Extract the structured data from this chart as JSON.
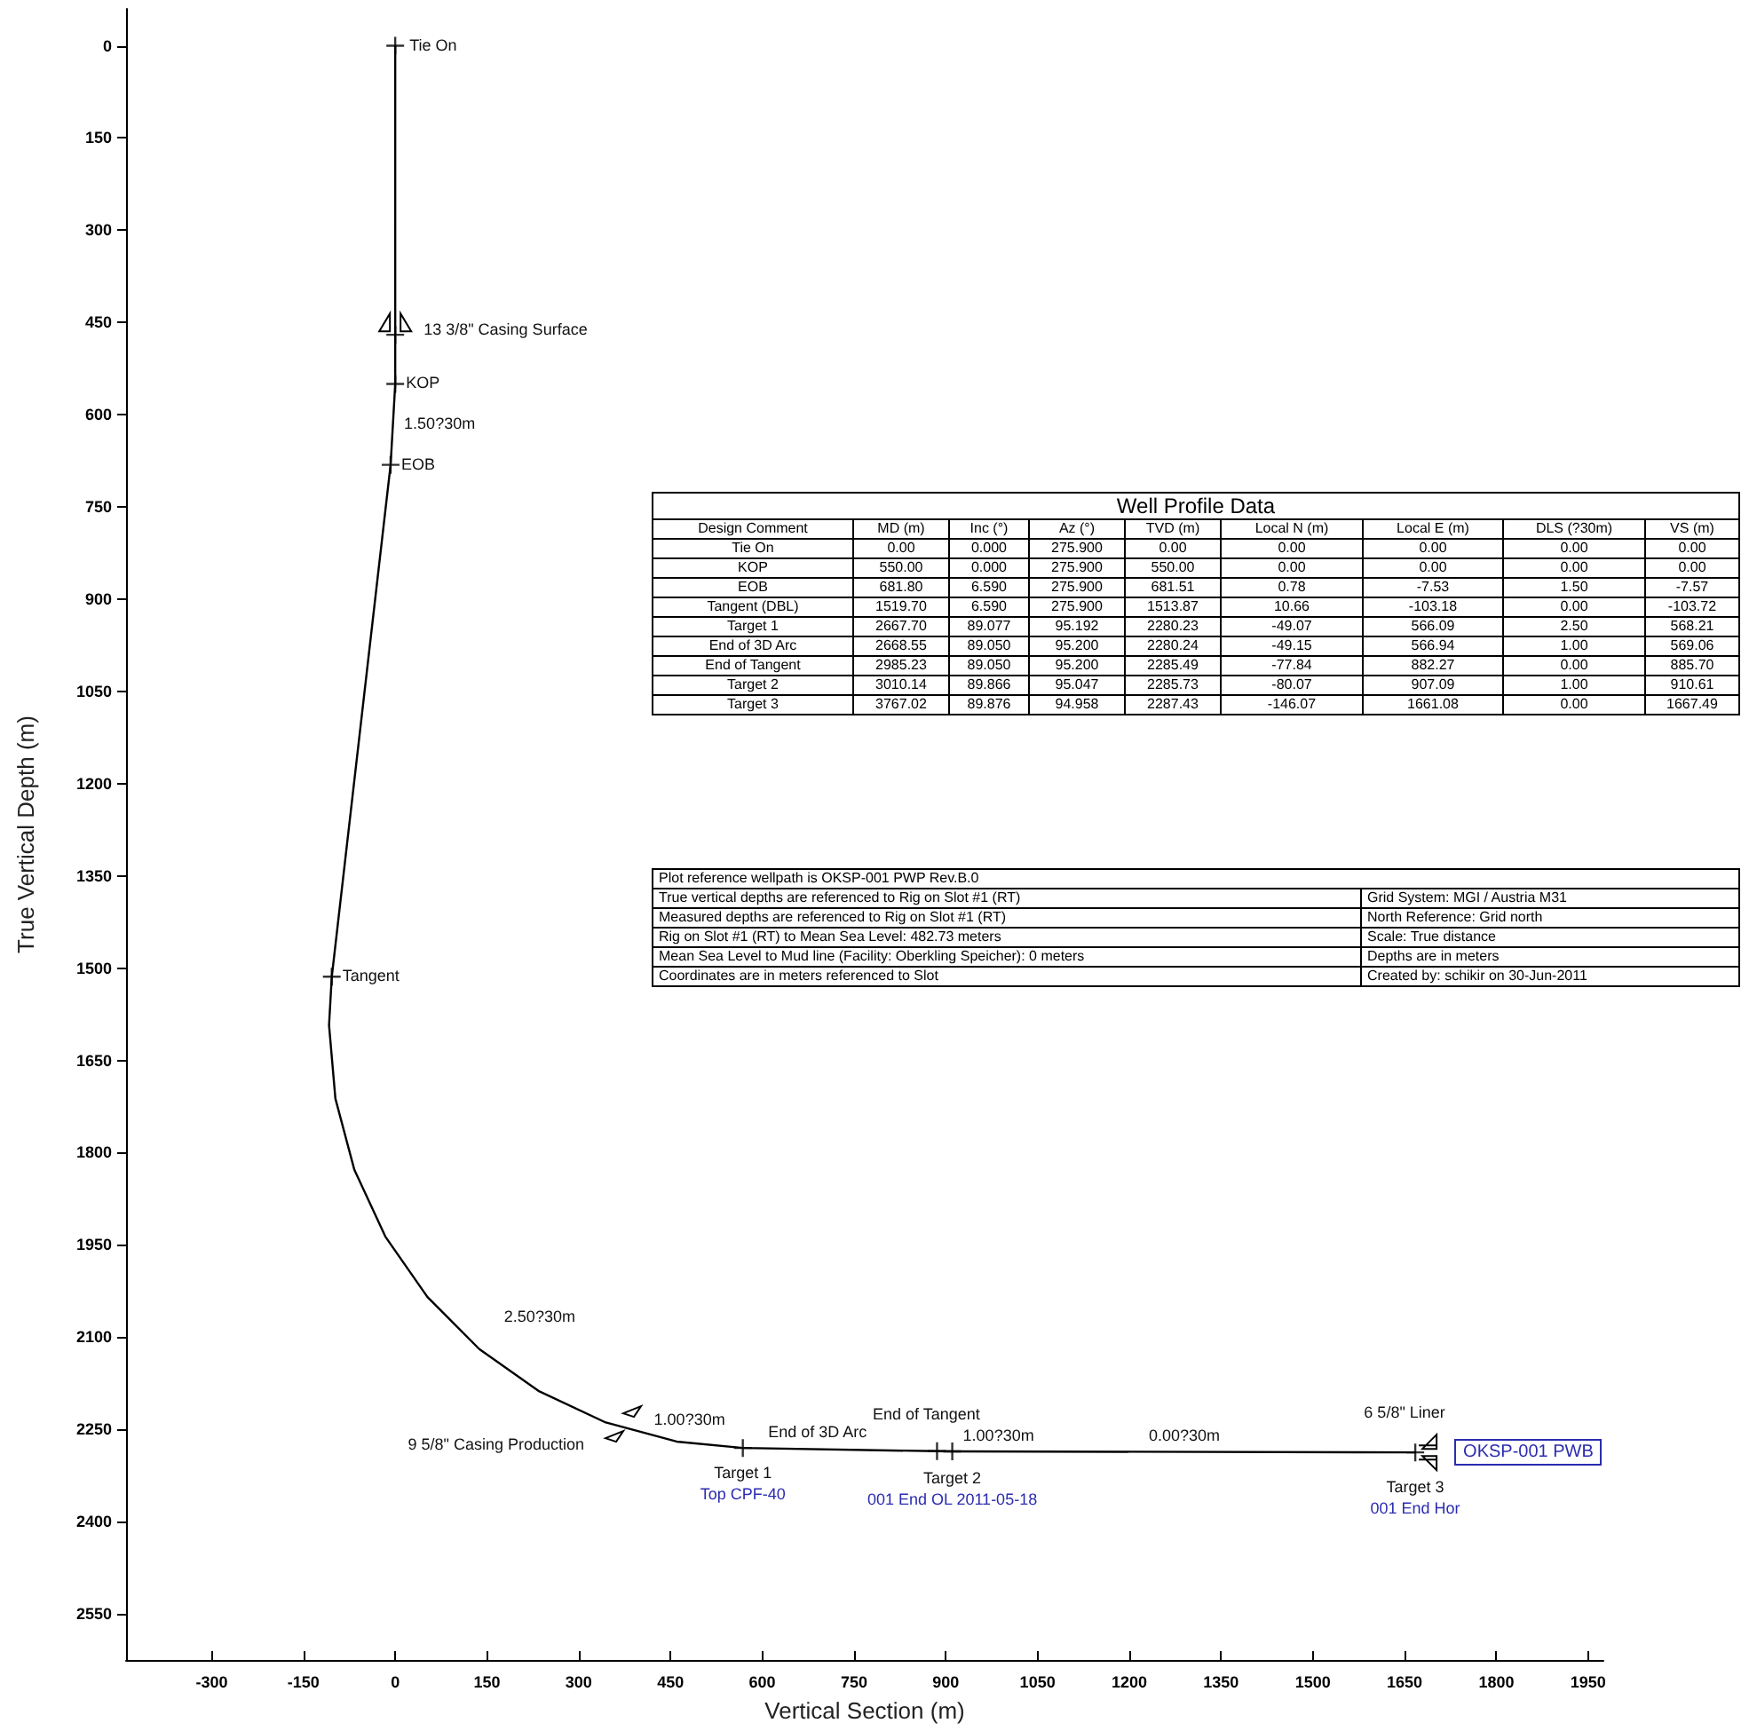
{
  "chart_data": {
    "type": "line",
    "xlabel": "Vertical Section (m)",
    "ylabel": "True Vertical Depth (m)",
    "xlim": [
      -440,
      1975
    ],
    "ylim": [
      2625,
      -60
    ],
    "xticks": [
      -300,
      -150,
      0,
      150,
      300,
      450,
      600,
      750,
      900,
      1050,
      1200,
      1350,
      1500,
      1650,
      1800,
      1950
    ],
    "yticks": [
      0,
      150,
      300,
      450,
      600,
      750,
      900,
      1050,
      1200,
      1350,
      1500,
      1650,
      1800,
      1950,
      2100,
      2250,
      2400,
      2550
    ],
    "grid": false,
    "series": [
      {
        "color": "#000000",
        "marker": "none",
        "x": [
          0,
          0,
          -7.57,
          -103.72,
          -108.2,
          -97.8,
          -66.8,
          -16.1,
          52.7,
          137.4,
          235.6,
          344.2,
          459.9,
          568.21,
          569.06,
          885.7,
          910.61,
          1667.49
        ],
        "values": [
          0,
          550,
          681.51,
          1513.87,
          1592.8,
          1712.2,
          1827.9,
          1936.6,
          2034.7,
          2119.4,
          2188.2,
          2238.8,
          2269.8,
          2280.23,
          2280.24,
          2285.49,
          2285.73,
          2287.43
        ]
      },
      {
        "type": "scatter",
        "color": "#000000",
        "marker": "cross",
        "x": [
          0,
          0,
          0,
          -7.57,
          -103.72,
          568.21,
          569.06,
          885.7,
          910.61,
          1667.49
        ],
        "values": [
          0,
          470,
          550,
          681.51,
          1513.87,
          2280.23,
          null,
          2285.49,
          2285.73,
          2287.43
        ]
      }
    ],
    "annotations": [
      {
        "text": "Tie On",
        "x": 0,
        "y": 0
      },
      {
        "text": "13 3/8\" Casing Surface",
        "x": 0,
        "y": 470
      },
      {
        "text": "KOP",
        "x": 0,
        "y": 550
      },
      {
        "text": "1.50?30m",
        "x": -3,
        "y": 615
      },
      {
        "text": "EOB",
        "x": -7.57,
        "y": 681.51
      },
      {
        "text": "Tangent",
        "x": -103.72,
        "y": 1513.87
      },
      {
        "text": "2.50?30m",
        "x": 137.4,
        "y": 2119.4
      },
      {
        "text": "9 5/8\" Casing Production",
        "x": 367,
        "y": 2247
      },
      {
        "text": "1.00?30m",
        "x": 568.21,
        "y": 2280.23
      },
      {
        "text": "Target 1",
        "x": 568.21,
        "y": 2280.23
      },
      {
        "text": "Top CPF-40",
        "x": 568.21,
        "y": 2280.23
      },
      {
        "text": "End of 3D Arc",
        "x": 569.06,
        "y": 2280.24
      },
      {
        "text": "End of Tangent",
        "x": 885.7,
        "y": 2285.49
      },
      {
        "text": "1.00?30m",
        "x": 910.61,
        "y": 2285.73
      },
      {
        "text": "Target 2",
        "x": 910.61,
        "y": 2285.73
      },
      {
        "text": "001 End OL 2011-05-18",
        "x": 910.61,
        "y": 2285.73
      },
      {
        "text": "0.00?30m",
        "x": 1290,
        "y": 2286.5
      },
      {
        "text": "6 5/8\" Liner",
        "x": 1667.49,
        "y": 2287.43
      },
      {
        "text": "Target 3",
        "x": 1667.49,
        "y": 2287.43
      },
      {
        "text": "001 End Hor",
        "x": 1667.49,
        "y": 2287.43
      },
      {
        "text": "OKSP-001 PWB",
        "x": 1667.49,
        "y": 2287.43
      },
      "Well Profile Data",
      "Design Comment",
      "MD (m)",
      "Inc (°)",
      "Az (°)",
      "TVD (m)",
      "Local N (m)",
      "Local E (m)",
      "DLS (?30m)",
      "VS (m)",
      "Tie On",
      "0.00",
      "0.000",
      "275.900",
      "0.00",
      "0.00",
      "0.00",
      "0.00",
      "0.00",
      "KOP",
      "550.00",
      "0.000",
      "275.900",
      "550.00",
      "0.00",
      "0.00",
      "0.00",
      "0.00",
      "EOB",
      "681.80",
      "6.590",
      "275.900",
      "681.51",
      "0.78",
      "-7.53",
      "1.50",
      "-7.57",
      "Tangent (DBL)",
      "1519.70",
      "6.590",
      "275.900",
      "1513.87",
      "10.66",
      "-103.18",
      "0.00",
      "-103.72",
      "Target 1",
      "2667.70",
      "89.077",
      "95.192",
      "2280.23",
      "-49.07",
      "566.09",
      "2.50",
      "568.21",
      "End of 3D Arc",
      "2668.55",
      "89.050",
      "95.200",
      "2280.24",
      "-49.15",
      "566.94",
      "1.00",
      "569.06",
      "End of Tangent",
      "2985.23",
      "89.050",
      "95.200",
      "2285.49",
      "-77.84",
      "882.27",
      "0.00",
      "885.70",
      "Target 2",
      "3010.14",
      "89.866",
      "95.047",
      "2285.73",
      "-80.07",
      "907.09",
      "1.00",
      "910.61",
      "Target 3",
      "3767.02",
      "89.876",
      "94.958",
      "2287.43",
      "-146.07",
      "1661.08",
      "0.00",
      "1667.49",
      "Plot reference wellpath is OKSP-001 PWP Rev.B.0",
      "True vertical depths are referenced to Rig on Slot #1 (RT)",
      "Grid System: MGI / Austria M31",
      "Measured depths are referenced to Rig on Slot #1 (RT)",
      "North Reference: Grid north",
      "Rig on Slot #1 (RT) to Mean Sea Level: 482.73 meters",
      "Scale: True distance",
      "Mean Sea Level to Mud line (Facility: Oberkling Speicher): 0 meters",
      "Depths are in meters",
      "Coordinates are in meters referenced to Slot",
      "Created by: schikir on 30-Jun-2011"
    ]
  }
}
